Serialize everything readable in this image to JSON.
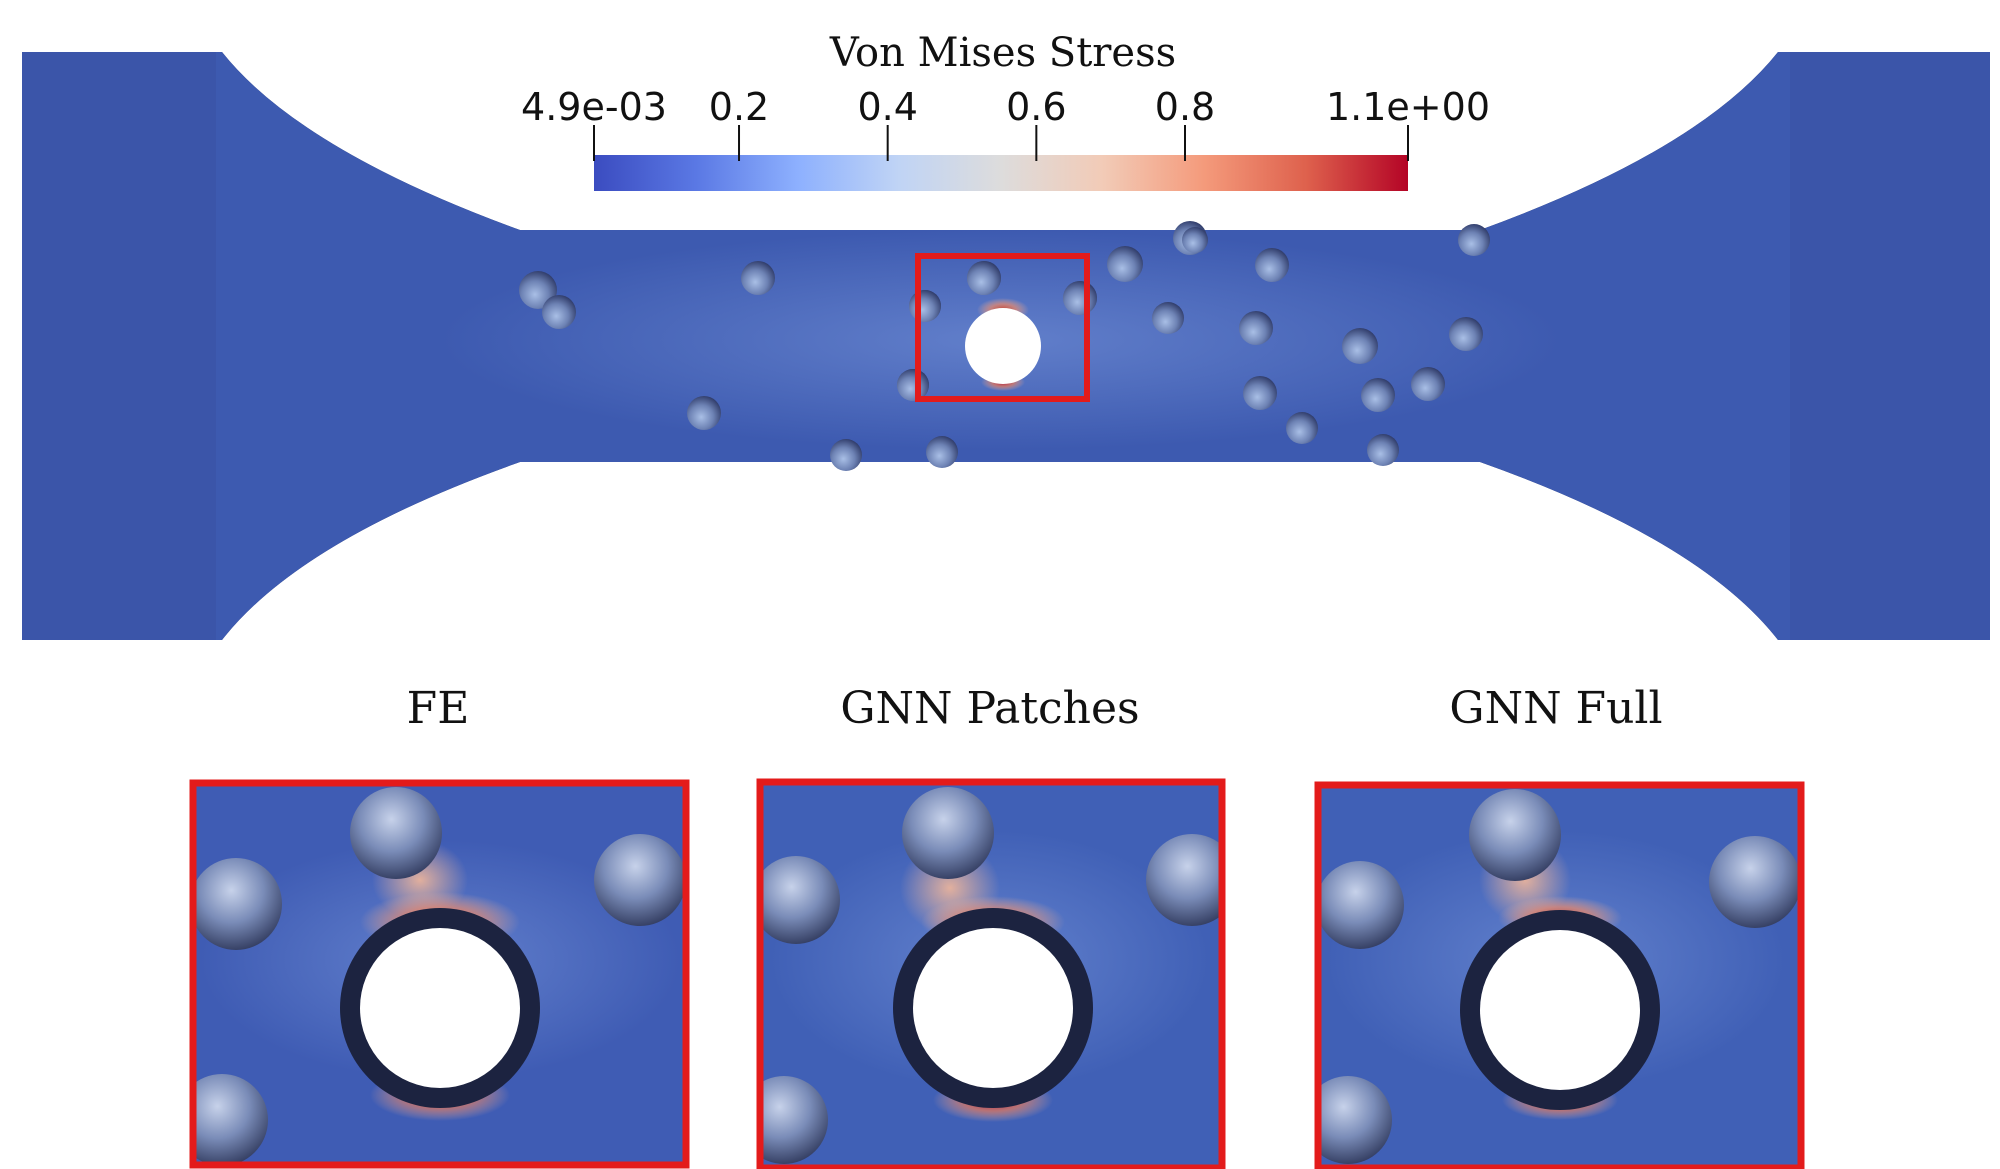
{
  "colorbar": {
    "title": "Von Mises Stress",
    "ticks": [
      {
        "label": "4.9e-03",
        "value": 0.0049
      },
      {
        "label": "0.2",
        "value": 0.2
      },
      {
        "label": "0.4",
        "value": 0.4
      },
      {
        "label": "0.6",
        "value": 0.6
      },
      {
        "label": "0.8",
        "value": 0.8
      },
      {
        "label": "1.1e+00",
        "value": 1.1
      }
    ],
    "range": [
      0.0049,
      1.1
    ],
    "colors": [
      "#3b4cc0",
      "#5a78e4",
      "#8db0fe",
      "#c0d4f5",
      "#dddcdc",
      "#f2cbb7",
      "#f49a7b",
      "#de614d",
      "#b40426"
    ]
  },
  "panels": [
    {
      "title": "FE"
    },
    {
      "title": "GNN Patches"
    },
    {
      "title": "GNN Full"
    }
  ],
  "colors": {
    "specimen": "#3d5ab0",
    "highlight": "#e31b1b",
    "hole": "#ffffff"
  }
}
